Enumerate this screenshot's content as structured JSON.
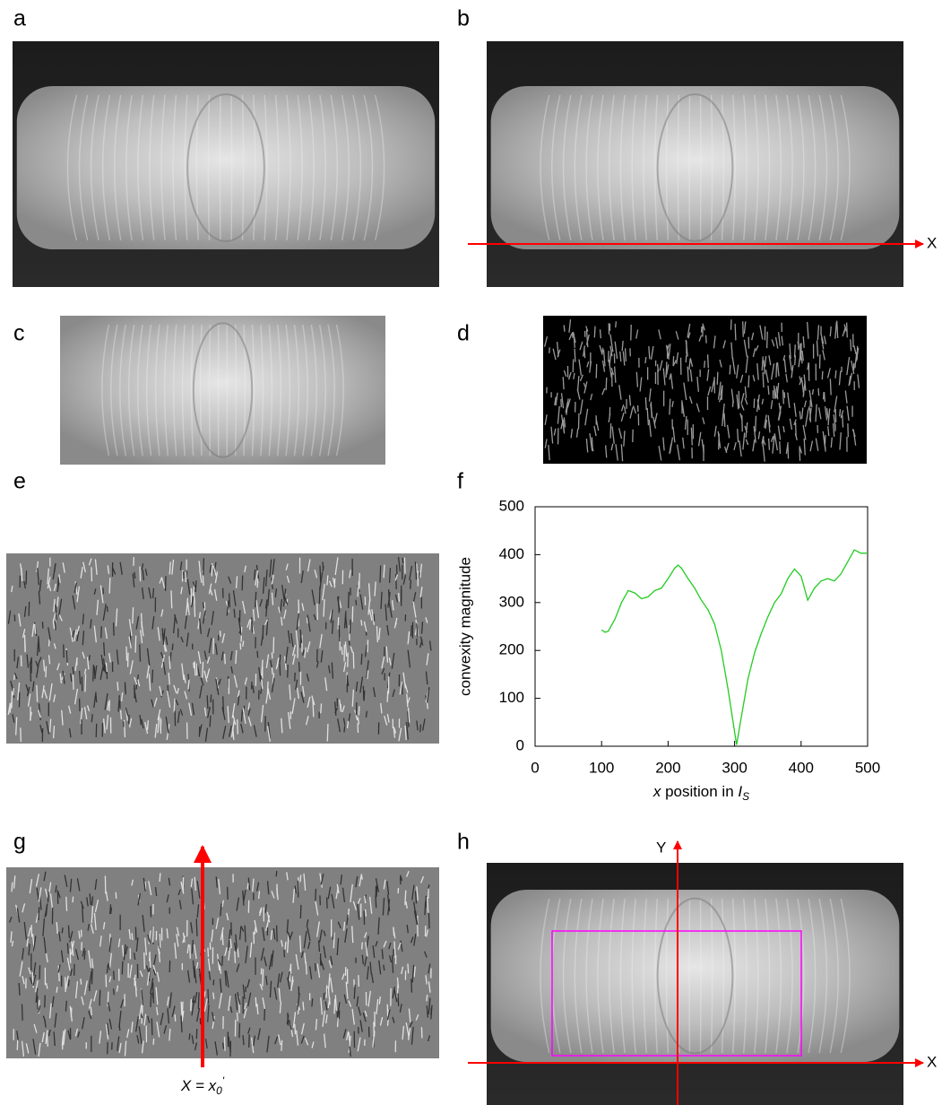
{
  "panels": {
    "labels": [
      "a",
      "b",
      "c",
      "d",
      "e",
      "f",
      "g",
      "h"
    ],
    "b_axis": "X",
    "g_formula": [
      "X = x",
      "0",
      "'"
    ],
    "h_x_axis": "X",
    "h_y_axis": "Y"
  },
  "chart_data": {
    "type": "line",
    "y_label": "convexity magnitude",
    "x_label": [
      "x",
      " position in ",
      "I",
      "S"
    ],
    "x": [
      100,
      105,
      110,
      120,
      130,
      140,
      150,
      160,
      170,
      180,
      190,
      200,
      210,
      215,
      220,
      230,
      240,
      250,
      260,
      270,
      280,
      290,
      300,
      303,
      310,
      320,
      330,
      340,
      350,
      360,
      370,
      380,
      390,
      400,
      410,
      420,
      430,
      440,
      450,
      460,
      470,
      480,
      490,
      500
    ],
    "series": [
      {
        "color": "#22cc22",
        "values": [
          243,
          238,
          240,
          265,
          300,
          325,
          320,
          308,
          312,
          325,
          330,
          350,
          372,
          378,
          372,
          350,
          330,
          305,
          285,
          255,
          200,
          120,
          30,
          3,
          60,
          140,
          195,
          235,
          270,
          300,
          318,
          350,
          370,
          355,
          305,
          330,
          345,
          350,
          345,
          360,
          385,
          410,
          403,
          403
        ]
      }
    ],
    "xlim": [
      0,
      500
    ],
    "ylim": [
      0,
      500
    ],
    "xticks": [
      0,
      100,
      200,
      300,
      400,
      500
    ],
    "yticks": [
      0,
      100,
      200,
      300,
      400,
      500
    ]
  }
}
